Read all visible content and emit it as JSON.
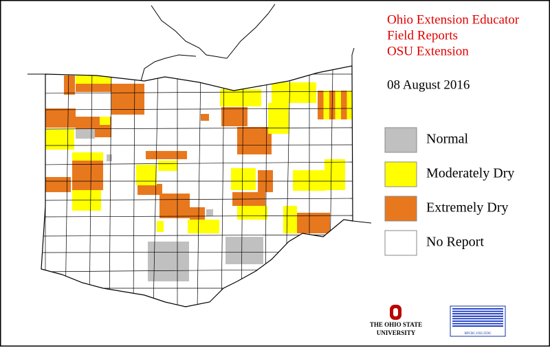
{
  "header": {
    "title_lines": [
      "Ohio Extension Educator",
      "Field Reports",
      "OSU Extension"
    ],
    "date": "08 August 2016"
  },
  "legend": {
    "items": [
      {
        "label": "Normal",
        "color": "#c0c0c0"
      },
      {
        "label": "Moderately Dry",
        "color": "#ffff00"
      },
      {
        "label": "Extremely Dry",
        "color": "#e8781e"
      },
      {
        "label": "No Report",
        "color": "#ffffff"
      }
    ]
  },
  "logos": {
    "osu": [
      "THE OHIO STATE",
      "UNIVERSITY"
    ],
    "bpcrc": "BPCRC.OSU.EDU"
  }
}
